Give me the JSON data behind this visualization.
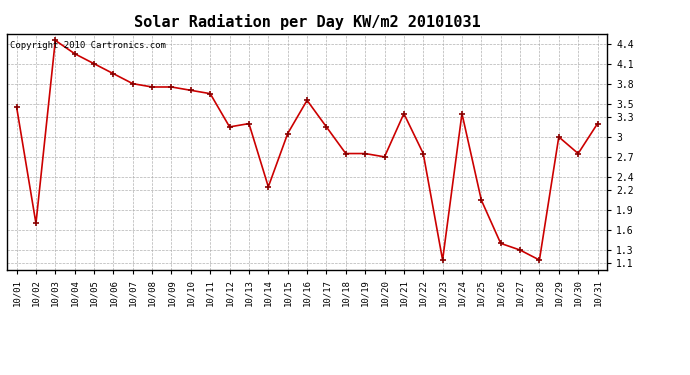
{
  "title": "Solar Radiation per Day KW/m2 20101031",
  "copyright_text": "Copyright 2010 Cartronics.com",
  "dates": [
    "10/01",
    "10/02",
    "10/03",
    "10/04",
    "10/05",
    "10/06",
    "10/07",
    "10/08",
    "10/09",
    "10/10",
    "10/11",
    "10/12",
    "10/13",
    "10/14",
    "10/15",
    "10/16",
    "10/17",
    "10/18",
    "10/19",
    "10/20",
    "10/21",
    "10/22",
    "10/23",
    "10/24",
    "10/25",
    "10/26",
    "10/27",
    "10/28",
    "10/29",
    "10/30",
    "10/31"
  ],
  "values": [
    3.45,
    1.7,
    4.45,
    4.25,
    4.1,
    3.95,
    3.8,
    3.75,
    3.75,
    3.7,
    3.65,
    3.15,
    3.2,
    2.25,
    3.05,
    3.55,
    3.15,
    2.75,
    2.75,
    2.7,
    3.35,
    2.75,
    1.15,
    3.35,
    2.05,
    1.4,
    1.3,
    1.15,
    3.0,
    2.75,
    3.2
  ],
  "line_color": "#cc0000",
  "marker_color": "#880000",
  "ylim_min": 1.0,
  "ylim_max": 4.55,
  "yticks": [
    1.1,
    1.3,
    1.6,
    1.9,
    2.2,
    2.4,
    2.7,
    3.0,
    3.3,
    3.5,
    3.8,
    4.1,
    4.4
  ],
  "grid_color": "#aaaaaa",
  "background_color": "#ffffff",
  "title_fontsize": 11,
  "copyright_fontsize": 6.5,
  "tick_fontsize": 6.5,
  "ytick_fontsize": 7
}
